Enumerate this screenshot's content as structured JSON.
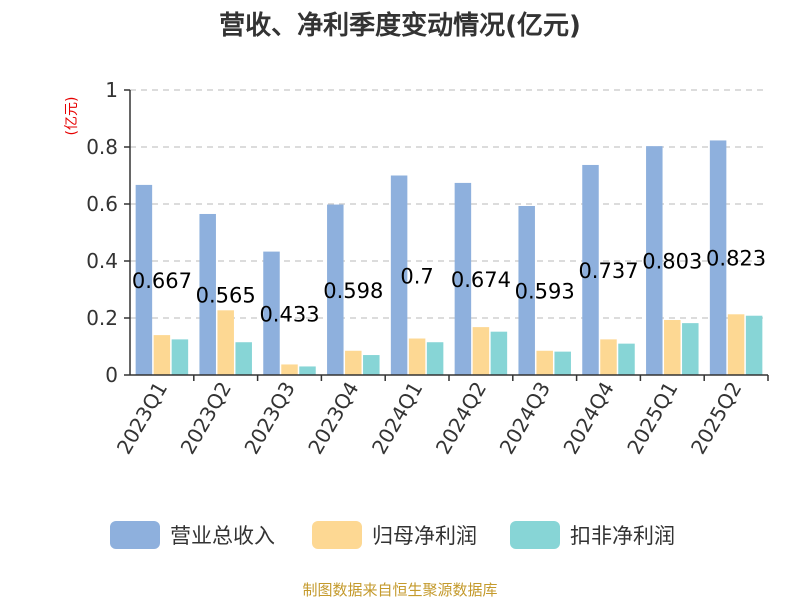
{
  "chart_data": {
    "type": "bar",
    "title": "营收、净利季度变动情况(亿元)",
    "unit_label": "(亿元)",
    "categories": [
      "2023Q1",
      "2023Q2",
      "2023Q3",
      "2023Q4",
      "2024Q1",
      "2024Q2",
      "2024Q3",
      "2024Q4",
      "2025Q1",
      "2025Q2"
    ],
    "series": [
      {
        "name": "营业总收入",
        "color": "#8eb0dd",
        "values": [
          0.667,
          0.565,
          0.433,
          0.598,
          0.7,
          0.674,
          0.593,
          0.737,
          0.803,
          0.823
        ],
        "labels": [
          "0.667",
          "0.565",
          "0.433",
          "0.598",
          "0.7",
          "0.674",
          "0.593",
          "0.737",
          "0.803",
          "0.823"
        ]
      },
      {
        "name": "归母净利润",
        "color": "#fdd893",
        "values": [
          0.14,
          0.227,
          0.037,
          0.085,
          0.128,
          0.168,
          0.085,
          0.125,
          0.193,
          0.213
        ]
      },
      {
        "name": "扣非净利润",
        "color": "#87d5d6",
        "values": [
          0.125,
          0.115,
          0.03,
          0.07,
          0.115,
          0.152,
          0.082,
          0.11,
          0.182,
          0.208
        ]
      }
    ],
    "ylim": [
      0,
      1
    ],
    "yticks": [
      {
        "v": 0,
        "t": "0"
      },
      {
        "v": 0.2,
        "t": "0.2"
      },
      {
        "v": 0.4,
        "t": "0.4"
      },
      {
        "v": 0.6,
        "t": "0.6"
      },
      {
        "v": 0.8,
        "t": "0.8"
      },
      {
        "v": 1,
        "t": "1"
      }
    ],
    "grid": true,
    "legend_position": "bottom",
    "source": "制图数据来自恒生聚源数据库"
  }
}
